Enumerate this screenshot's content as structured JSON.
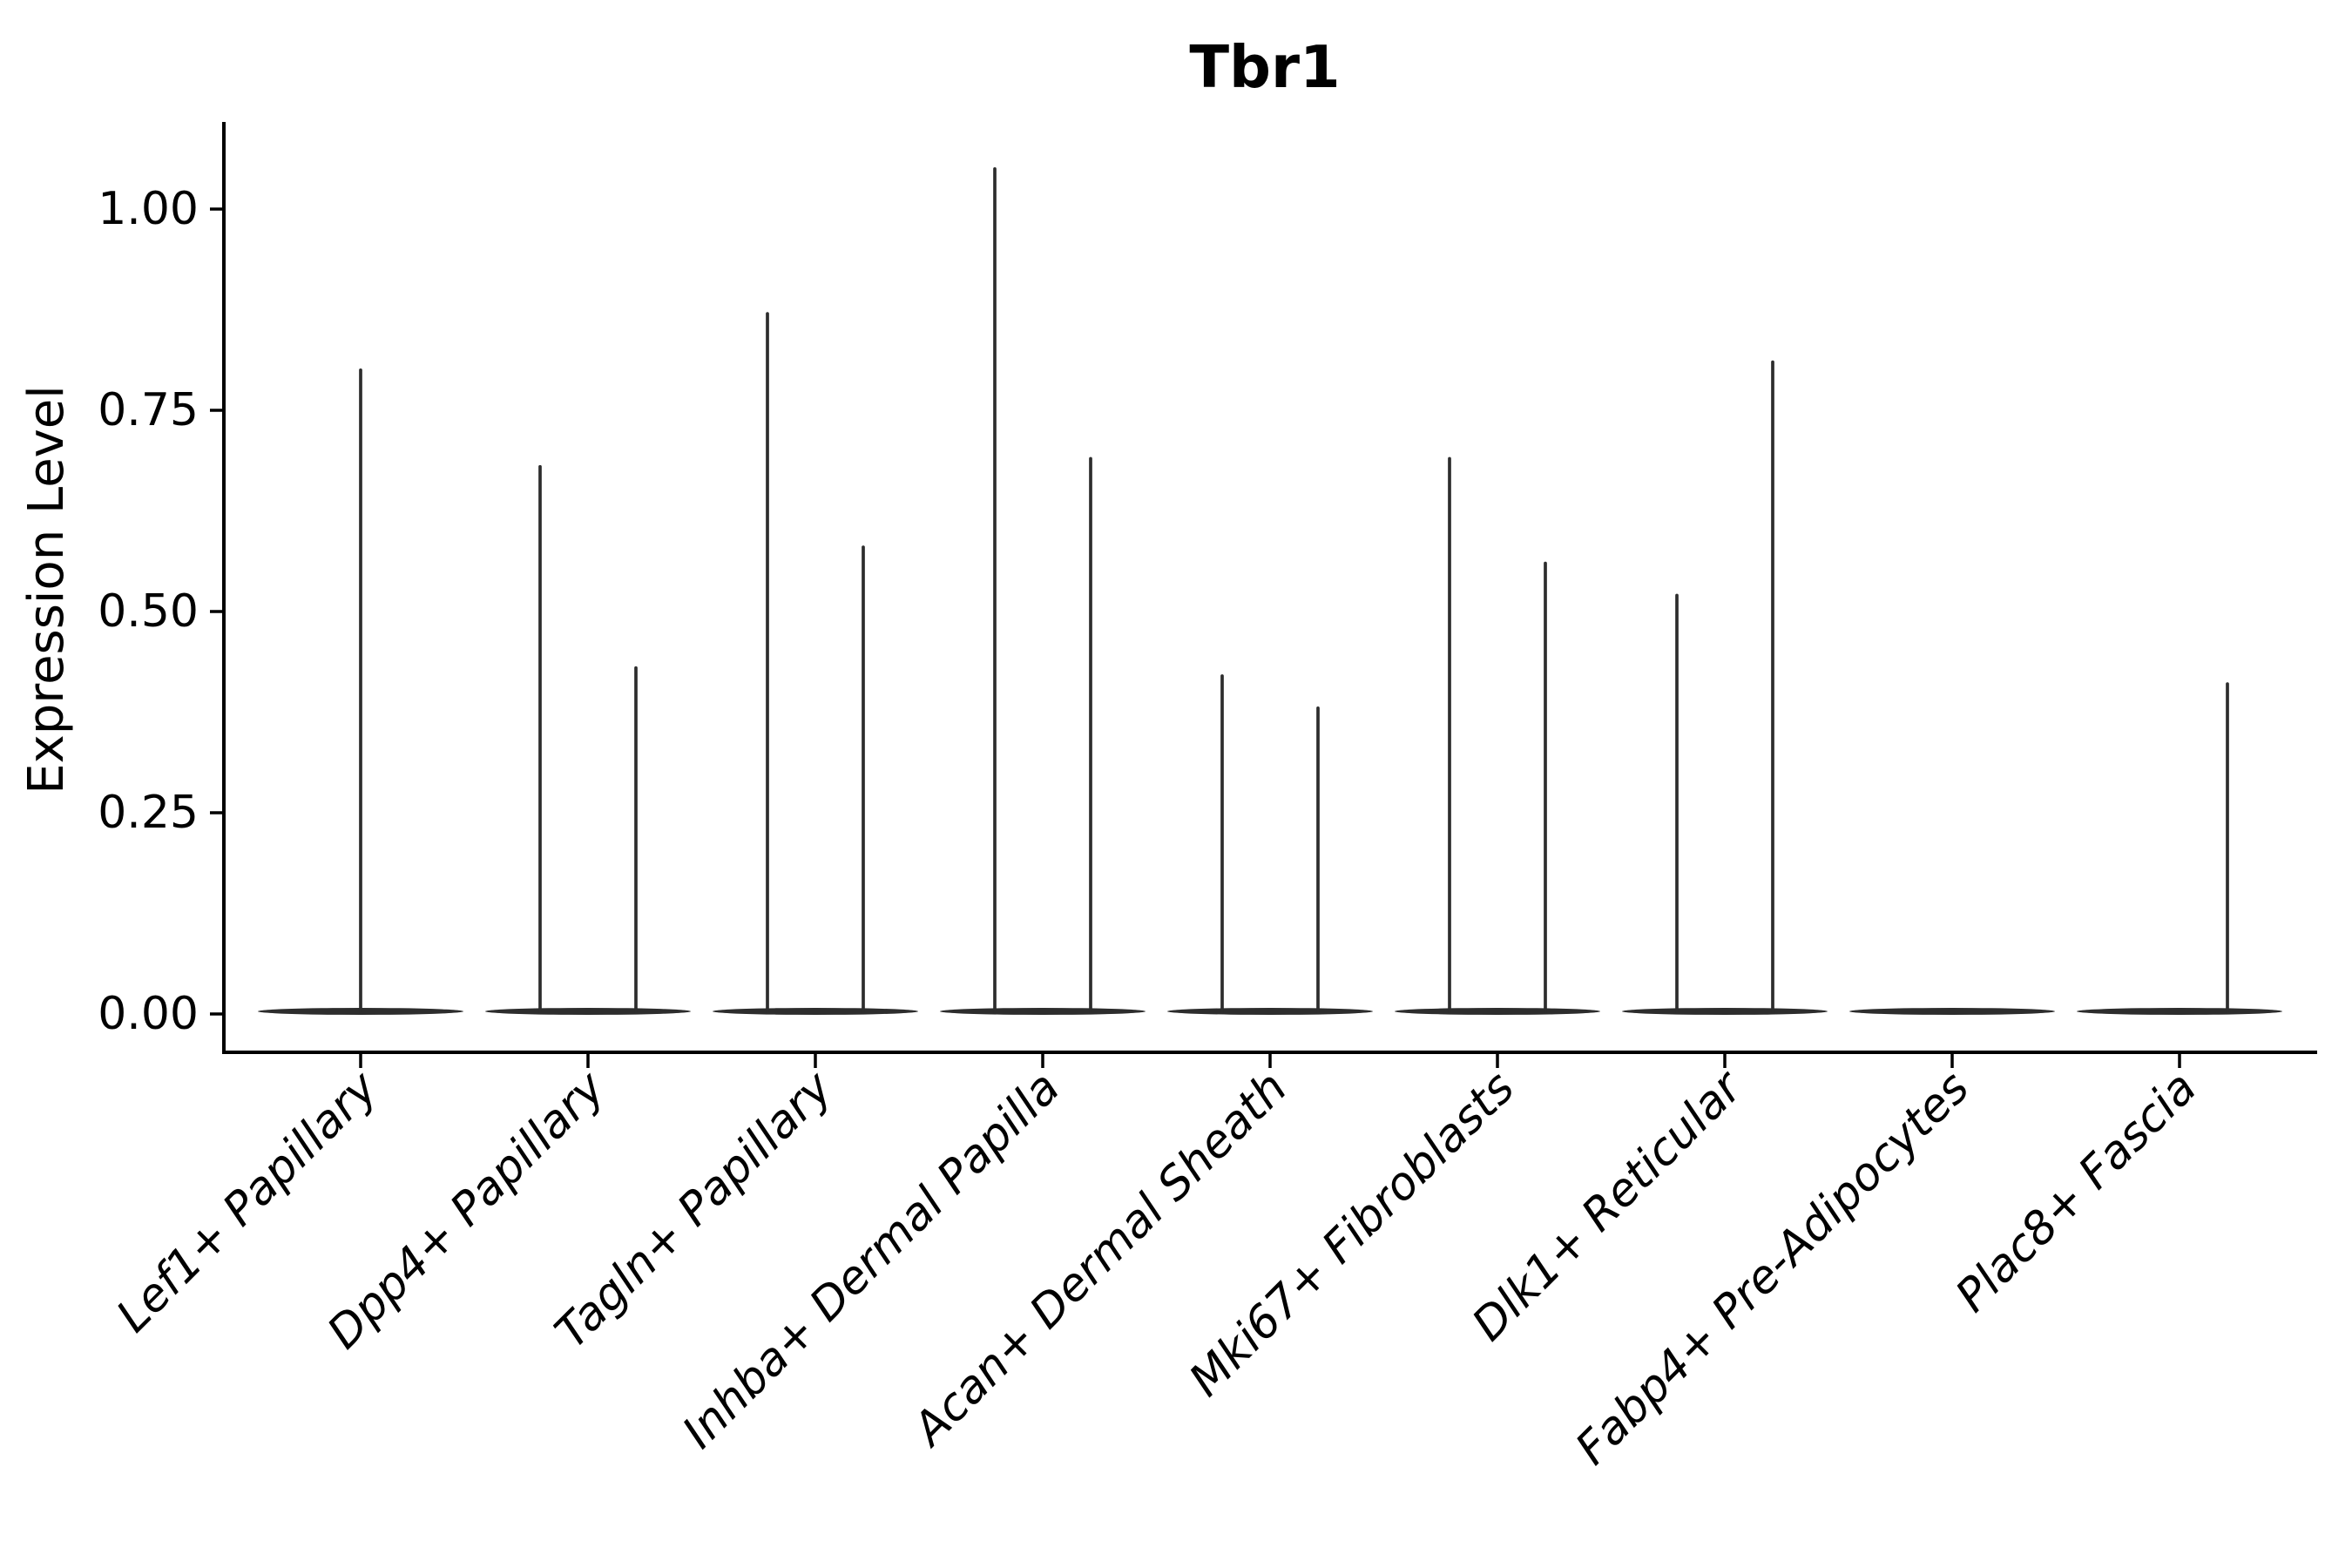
{
  "chart_data": {
    "type": "violin",
    "title": "Tbr1",
    "xlabel": "",
    "ylabel": "Expression Level",
    "ylim": [
      -0.05,
      1.11
    ],
    "grid": false,
    "legend": "none",
    "yticks": [
      "0.00",
      "0.25",
      "0.50",
      "0.75",
      "1.00"
    ],
    "ytick_values": [
      0,
      0.25,
      0.5,
      0.75,
      1.0
    ],
    "categories": [
      "Lef1+ Papillary",
      "Dpp4+ Papillary",
      "Tagln+ Papillary",
      "Inhba+ Dermal Papilla",
      "Acan+ Dermal Sheath",
      "Mki67+ Fibroblasts",
      "Dlk1+ Reticular",
      "Fabp4+ Pre-Adipocytes",
      "Plac8+ Fascia"
    ],
    "violins": [
      {
        "category": "Lef1+ Papillary",
        "baseline": 0,
        "spikes": [
          {
            "position": "center",
            "max": 0.8
          }
        ]
      },
      {
        "category": "Dpp4+ Papillary",
        "baseline": 0,
        "spikes": [
          {
            "position": "left",
            "max": 0.68
          },
          {
            "position": "right",
            "max": 0.43
          }
        ]
      },
      {
        "category": "Tagln+ Papillary",
        "baseline": 0,
        "spikes": [
          {
            "position": "left",
            "max": 0.87
          },
          {
            "position": "right",
            "max": 0.58
          }
        ]
      },
      {
        "category": "Inhba+ Dermal Papilla",
        "baseline": 0,
        "spikes": [
          {
            "position": "left",
            "max": 1.05
          },
          {
            "position": "right",
            "max": 0.69
          }
        ]
      },
      {
        "category": "Acan+ Dermal Sheath",
        "baseline": 0,
        "spikes": [
          {
            "position": "left",
            "max": 0.42
          },
          {
            "position": "right",
            "max": 0.38
          }
        ]
      },
      {
        "category": "Mki67+ Fibroblasts",
        "baseline": 0,
        "spikes": [
          {
            "position": "left",
            "max": 0.69
          },
          {
            "position": "right",
            "max": 0.56
          }
        ]
      },
      {
        "category": "Dlk1+ Reticular",
        "baseline": 0,
        "spikes": [
          {
            "position": "left",
            "max": 0.52
          },
          {
            "position": "right",
            "max": 0.81
          }
        ]
      },
      {
        "category": "Fabp4+ Pre-Adipocytes",
        "baseline": 0,
        "spikes": []
      },
      {
        "category": "Plac8+ Fascia",
        "baseline": 0,
        "spikes": [
          {
            "position": "right",
            "max": 0.41
          }
        ]
      }
    ],
    "colors": {
      "violin_line": "#2d2d2d",
      "axis": "#000000",
      "text": "#000000",
      "background": "#ffffff"
    }
  }
}
